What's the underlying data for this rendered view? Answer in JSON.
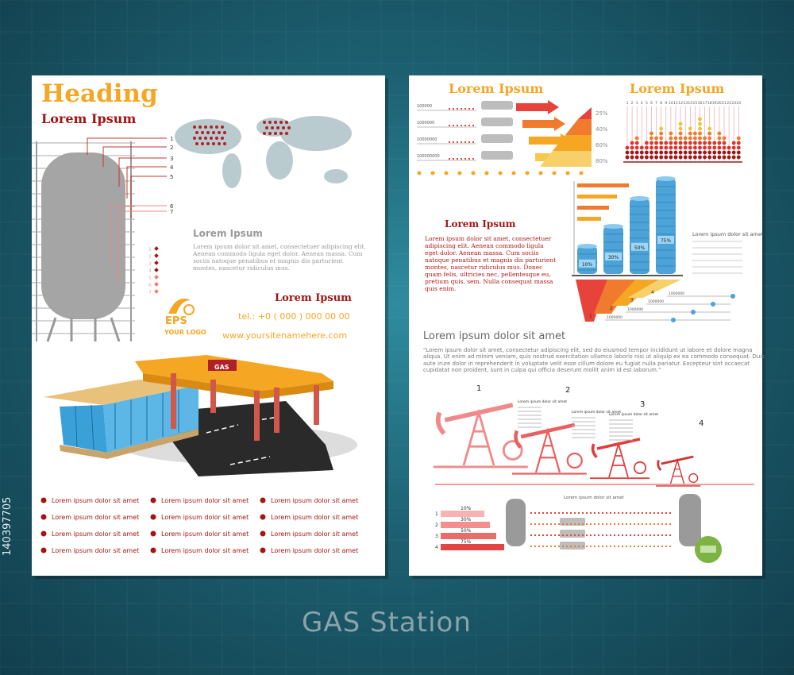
{
  "footer_title": "GAS Station",
  "stock_id": "140397705",
  "left_page": {
    "heading": "Heading",
    "subheading": "Lorem Ipsum",
    "tank_labels": [
      "1",
      "2",
      "3",
      "4",
      "5",
      "6",
      "7"
    ],
    "legend_numbers": [
      "1",
      "2",
      "3",
      "4",
      "5",
      "6",
      "7"
    ],
    "section_title": "Lorem Ipsum",
    "section_text": "Lorem ipsum dolor sit amet, consectetuer adipiscing elit. Aenean commodo ligula eget dolor. Aenean massa. Cum sociis natoque penatibus et magnis dis parturient montes, nascetur ridiculus mus.",
    "logo_badge": "EPS",
    "logo_text": "YOUR LOGO",
    "contact_title": "Lorem Ipsum",
    "phone": "tel.: +0 ( 000 ) 000 00 00",
    "website": "www.yoursitenamehere.com",
    "sign": "GAS",
    "bullets": [
      "Lorem ipsum dolor sit amet",
      "Lorem ipsum dolor sit amet",
      "Lorem ipsum dolor sit amet",
      "Lorem ipsum dolor sit amet",
      "Lorem ipsum dolor sit amet",
      "Lorem ipsum dolor sit amet",
      "Lorem ipsum dolor sit amet",
      "Lorem ipsum dolor sit amet",
      "Lorem ipsum dolor sit amet",
      "Lorem ipsum dolor sit amet",
      "Lorem ipsum dolor sit amet",
      "Lorem ipsum dolor sit amet"
    ]
  },
  "right_page": {
    "title_left": "Lorem Ipsum",
    "title_right": "Lorem Ipsum",
    "flow_values": [
      "100000",
      "1000000",
      "10000000",
      "100000000"
    ],
    "pyramid_percents": [
      "25%",
      "40%",
      "60%",
      "80%"
    ],
    "dot_chart_labels": [
      "1",
      "2",
      "3",
      "4",
      "5",
      "6",
      "7",
      "8",
      "9",
      "10",
      "11",
      "12",
      "13",
      "14",
      "15",
      "16",
      "17",
      "18",
      "19",
      "20",
      "21",
      "22",
      "23",
      "24"
    ],
    "dot_columns": [
      3,
      4,
      5,
      3,
      4,
      6,
      5,
      7,
      4,
      6,
      5,
      8,
      5,
      7,
      6,
      9,
      5,
      7,
      4,
      6,
      5,
      3,
      4,
      5
    ],
    "cylinder_percents": [
      "10%",
      "30%",
      "50%",
      "75%"
    ],
    "text_title": "Lorem Ipsum",
    "text_body": "Lorem ipsum dolor sit amet, consectetuer adipiscing elit. Aenean commodo ligula eget dolor. Aenean massa. Cum sociis natoque penatibus et magnis dis parturient montes, nascetur ridiculus mus. Donec quam felis, ultricies nec, pellentesque eu, pretium quis, sem. Nulla consequat massa quis enim.",
    "side_title": "Lorem ipsum dolor sit amet",
    "funnel_labels": [
      "1",
      "2",
      "3",
      "4"
    ],
    "funnel_values": [
      "1000000",
      "1000000",
      "1000000",
      "1000000"
    ],
    "main_heading": "Lorem ipsum dolor sit amet",
    "quote": "\"Lorem ipsum dolor sit amet, consectetur adipiscing elit, sed do eiusmod tempor incididunt ut labore et dolore magna aliqua. Ut enim ad minim veniam, quis nostrud exercitation ullamco laboris nisi ut aliquip ex ea commodo consequat. Duis aute irure dolor in reprehenderit in voluptate velit esse cillum dolore eu fugiat nulla pariatur. Excepteur sint occaecat cupidatat non proident, sunt in culpa qui officia deserunt mollit anim id est laborum.\"",
    "pump_numbers": [
      "1",
      "2",
      "3",
      "4"
    ],
    "pump_captions": [
      "Lorem ipsum dolor sit amet",
      "Lorem ipsum dolor sit amet",
      "Lorem ipsum dolor sit amet"
    ],
    "bottom_caption": "Lorem ipsum dolor sit amet",
    "bottom_numbers": [
      "1",
      "2",
      "3",
      "4"
    ],
    "bottom_percents": [
      "10%",
      "30%",
      "50%",
      "75%"
    ]
  }
}
